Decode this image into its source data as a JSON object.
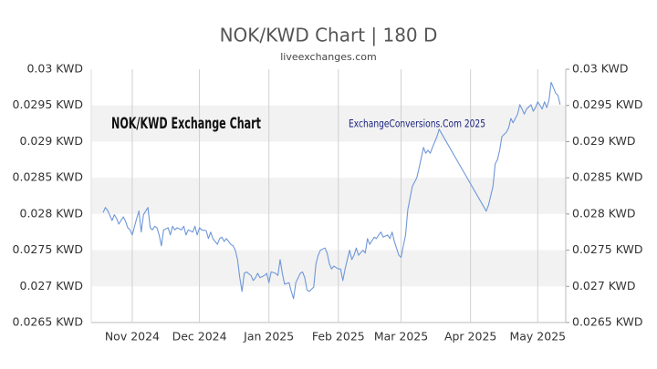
{
  "chart_data": {
    "type": "line",
    "title": "NOK/KWD Chart | 180 D",
    "subtitle": "liveexchanges.com",
    "annotations": [
      "NOK/KWD Exchange Chart",
      "ExchangeConversions.Com 2025"
    ],
    "color": "#6f97d8",
    "grid": true,
    "x": [
      0,
      1,
      2,
      4,
      5,
      6,
      7,
      9,
      10,
      11,
      12,
      13,
      15,
      16,
      17,
      18,
      20,
      21,
      22,
      23,
      24,
      25,
      26,
      27,
      29,
      30,
      31,
      32,
      33,
      35,
      36,
      37,
      38,
      40,
      41,
      42,
      43,
      44,
      46,
      47,
      48,
      49,
      51,
      52,
      53,
      54,
      55,
      57,
      58,
      59,
      60,
      61,
      62,
      63,
      64,
      66,
      67,
      68,
      69,
      70,
      72,
      73,
      74,
      75,
      77,
      78,
      79,
      80,
      81,
      83,
      84,
      85,
      86,
      88,
      89,
      90,
      91,
      92,
      94,
      95,
      96,
      97,
      99,
      100,
      101,
      102,
      103,
      105,
      106,
      107,
      108,
      110,
      111,
      112,
      113,
      114,
      116,
      117,
      118,
      119,
      121,
      122,
      123,
      124,
      125,
      127,
      128,
      129,
      130,
      132,
      133,
      134,
      135,
      136,
      138,
      139,
      140,
      141,
      143,
      144,
      145,
      146,
      147,
      149,
      150,
      171,
      172,
      174,
      175,
      176,
      177,
      178,
      180,
      181,
      182,
      183,
      185,
      186,
      187,
      188,
      189,
      191,
      192,
      193,
      194,
      196,
      197,
      198,
      199,
      200,
      202,
      203,
      204
    ],
    "values": [
      0.02802,
      0.02809,
      0.02805,
      0.02791,
      0.02799,
      0.02794,
      0.02786,
      0.02796,
      0.0279,
      0.02781,
      0.02778,
      0.02771,
      0.02794,
      0.02804,
      0.02775,
      0.02799,
      0.02809,
      0.02781,
      0.02778,
      0.02783,
      0.02781,
      0.02771,
      0.02756,
      0.02778,
      0.02781,
      0.02771,
      0.02783,
      0.02778,
      0.02781,
      0.02778,
      0.02783,
      0.02771,
      0.02778,
      0.02775,
      0.02783,
      0.02771,
      0.02781,
      0.02778,
      0.02777,
      0.02766,
      0.02775,
      0.02766,
      0.02758,
      0.02766,
      0.02768,
      0.02762,
      0.02766,
      0.02758,
      0.02756,
      0.0275,
      0.02737,
      0.02712,
      0.02693,
      0.02718,
      0.0272,
      0.02715,
      0.02708,
      0.02712,
      0.02718,
      0.02712,
      0.02715,
      0.02718,
      0.02705,
      0.0272,
      0.02718,
      0.02715,
      0.02737,
      0.02718,
      0.02703,
      0.02705,
      0.02693,
      0.02683,
      0.02705,
      0.02718,
      0.0272,
      0.02712,
      0.02695,
      0.02693,
      0.02699,
      0.02731,
      0.02743,
      0.0275,
      0.02753,
      0.02746,
      0.02731,
      0.02724,
      0.02728,
      0.02724,
      0.02724,
      0.02708,
      0.02724,
      0.0275,
      0.02737,
      0.02743,
      0.02753,
      0.02743,
      0.0275,
      0.02746,
      0.02766,
      0.02758,
      0.02768,
      0.02766,
      0.02771,
      0.02775,
      0.02768,
      0.02771,
      0.02766,
      0.02775,
      0.02762,
      0.02743,
      0.0274,
      0.02756,
      0.02771,
      0.02806,
      0.02838,
      0.02844,
      0.0285,
      0.02863,
      0.02892,
      0.02884,
      0.02888,
      0.02884,
      0.02892,
      0.02907,
      0.02917,
      0.02804,
      0.02812,
      0.02838,
      0.02869,
      0.02875,
      0.02888,
      0.02907,
      0.02913,
      0.02919,
      0.02932,
      0.02926,
      0.02938,
      0.02951,
      0.02945,
      0.02938,
      0.02945,
      0.02951,
      0.02942,
      0.02947,
      0.02955,
      0.02945,
      0.02955,
      0.02947,
      0.02957,
      0.02982,
      0.02967,
      0.02964,
      0.02951
    ],
    "xlim": [
      -5.3,
      206.5
    ],
    "xticks": [
      {
        "value": 13,
        "label": "Nov 2024"
      },
      {
        "value": 43,
        "label": "Dec 2024"
      },
      {
        "value": 74,
        "label": "Jan 2025"
      },
      {
        "value": 105,
        "label": "Feb 2025"
      },
      {
        "value": 133,
        "label": "Mar 2025"
      },
      {
        "value": 164,
        "label": "Apr 2025"
      },
      {
        "value": 194,
        "label": "May 2025"
      }
    ],
    "ylim": [
      0.0265,
      0.03
    ],
    "yticks": [
      {
        "value": 0.0265,
        "label": "0.0265 KWD"
      },
      {
        "value": 0.027,
        "label": "0.027 KWD"
      },
      {
        "value": 0.0275,
        "label": "0.0275 KWD"
      },
      {
        "value": 0.028,
        "label": "0.028 KWD"
      },
      {
        "value": 0.0285,
        "label": "0.0285 KWD"
      },
      {
        "value": 0.029,
        "label": "0.029 KWD"
      },
      {
        "value": 0.0295,
        "label": "0.0295 KWD"
      },
      {
        "value": 0.03,
        "label": "0.03 KWD"
      }
    ]
  }
}
